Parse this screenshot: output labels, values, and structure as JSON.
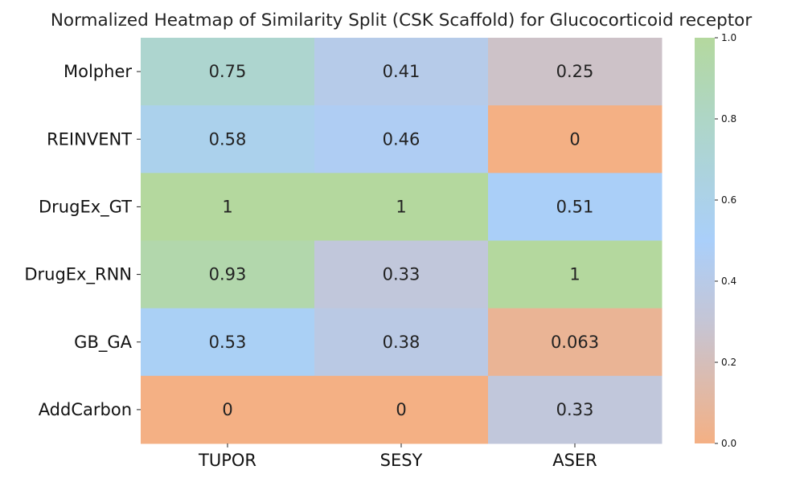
{
  "chart_data": {
    "type": "heatmap",
    "title": "Normalized Heatmap of Similarity Split (CSK Scaffold) for Glucocorticoid receptor",
    "rows": [
      "Molpher",
      "REINVENT",
      "DrugEx_GT",
      "DrugEx_RNN",
      "GB_GA",
      "AddCarbon"
    ],
    "columns": [
      "TUPOR",
      "SESY",
      "ASER"
    ],
    "values": [
      [
        0.75,
        0.41,
        0.25
      ],
      [
        0.58,
        0.46,
        0
      ],
      [
        1,
        1,
        0.51
      ],
      [
        0.93,
        0.33,
        1
      ],
      [
        0.53,
        0.38,
        0.063
      ],
      [
        0,
        0,
        0.33
      ]
    ],
    "value_labels": [
      [
        "0.75",
        "0.41",
        "0.25"
      ],
      [
        "0.58",
        "0.46",
        "0"
      ],
      [
        "1",
        "1",
        "0.51"
      ],
      [
        "0.93",
        "0.33",
        "1"
      ],
      [
        "0.53",
        "0.38",
        "0.063"
      ],
      [
        "0",
        "0",
        "0.33"
      ]
    ],
    "colorbar": {
      "range": [
        0,
        1
      ],
      "ticks": [
        "0.0",
        "0.2",
        "0.4",
        "0.6",
        "0.8",
        "1.0"
      ],
      "colors": {
        "0.0": "#f4b084",
        "0.3": "#c5c5d5",
        "0.5": "#aacffa",
        "0.8": "#aed6c6",
        "1.0": "#b4d89e"
      }
    }
  }
}
